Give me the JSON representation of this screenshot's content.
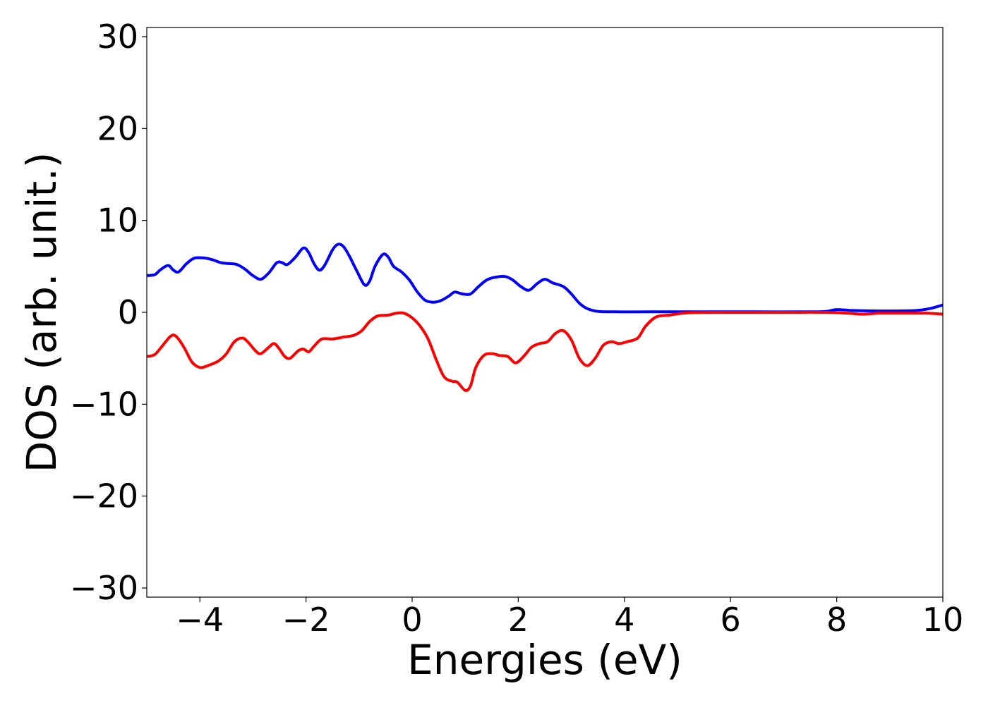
{
  "chart_data": {
    "type": "line",
    "title": "",
    "xlabel": "Energies (eV)",
    "ylabel": "DOS (arb. unit.)",
    "xlim": [
      -5,
      10
    ],
    "ylim": [
      -31,
      31
    ],
    "x_ticks": [
      -4,
      -2,
      0,
      2,
      4,
      6,
      8,
      10
    ],
    "y_ticks": [
      -30,
      -20,
      -10,
      0,
      10,
      20,
      30
    ],
    "x_tick_labels": [
      "−4",
      "−2",
      "0",
      "2",
      "4",
      "6",
      "8",
      "10"
    ],
    "y_tick_labels": [
      "−30",
      "−20",
      "−10",
      "0",
      "10",
      "20",
      "30"
    ],
    "grid": false,
    "legend": "none",
    "series": [
      {
        "color": "#0000ff",
        "points": [
          [
            -5.0,
            4.0
          ],
          [
            -4.85,
            4.1
          ],
          [
            -4.75,
            4.6
          ],
          [
            -4.6,
            5.1
          ],
          [
            -4.5,
            4.6
          ],
          [
            -4.4,
            4.4
          ],
          [
            -4.25,
            5.3
          ],
          [
            -4.1,
            5.9
          ],
          [
            -3.9,
            5.9
          ],
          [
            -3.75,
            5.7
          ],
          [
            -3.6,
            5.4
          ],
          [
            -3.45,
            5.3
          ],
          [
            -3.3,
            5.2
          ],
          [
            -3.15,
            4.7
          ],
          [
            -3.0,
            4.0
          ],
          [
            -2.85,
            3.6
          ],
          [
            -2.7,
            4.3
          ],
          [
            -2.55,
            5.4
          ],
          [
            -2.45,
            5.4
          ],
          [
            -2.35,
            5.2
          ],
          [
            -2.2,
            6.0
          ],
          [
            -2.05,
            7.0
          ],
          [
            -1.95,
            6.5
          ],
          [
            -1.85,
            5.3
          ],
          [
            -1.75,
            4.6
          ],
          [
            -1.65,
            5.1
          ],
          [
            -1.5,
            6.8
          ],
          [
            -1.4,
            7.4
          ],
          [
            -1.3,
            7.2
          ],
          [
            -1.2,
            6.3
          ],
          [
            -1.05,
            4.6
          ],
          [
            -0.9,
            3.0
          ],
          [
            -0.8,
            3.4
          ],
          [
            -0.7,
            5.0
          ],
          [
            -0.55,
            6.3
          ],
          [
            -0.45,
            6.0
          ],
          [
            -0.35,
            5.0
          ],
          [
            -0.2,
            4.4
          ],
          [
            -0.05,
            3.5
          ],
          [
            0.1,
            2.2
          ],
          [
            0.25,
            1.3
          ],
          [
            0.4,
            1.1
          ],
          [
            0.55,
            1.3
          ],
          [
            0.7,
            1.8
          ],
          [
            0.8,
            2.2
          ],
          [
            0.95,
            2.0
          ],
          [
            1.1,
            2.0
          ],
          [
            1.25,
            2.8
          ],
          [
            1.4,
            3.5
          ],
          [
            1.55,
            3.8
          ],
          [
            1.75,
            3.9
          ],
          [
            1.9,
            3.5
          ],
          [
            2.05,
            2.8
          ],
          [
            2.2,
            2.4
          ],
          [
            2.35,
            3.1
          ],
          [
            2.5,
            3.6
          ],
          [
            2.65,
            3.2
          ],
          [
            2.85,
            2.8
          ],
          [
            3.0,
            2.0
          ],
          [
            3.15,
            1.0
          ],
          [
            3.3,
            0.4
          ],
          [
            3.5,
            0.1
          ],
          [
            3.8,
            0.05
          ],
          [
            4.5,
            0.05
          ],
          [
            5.5,
            0.05
          ],
          [
            6.5,
            0.05
          ],
          [
            7.5,
            0.05
          ],
          [
            7.8,
            0.1
          ],
          [
            8.0,
            0.3
          ],
          [
            8.3,
            0.2
          ],
          [
            8.7,
            0.15
          ],
          [
            9.2,
            0.15
          ],
          [
            9.5,
            0.2
          ],
          [
            9.75,
            0.4
          ],
          [
            10.0,
            0.8
          ]
        ]
      },
      {
        "color": "#ff0000",
        "points": [
          [
            -5.0,
            -4.8
          ],
          [
            -4.85,
            -4.6
          ],
          [
            -4.7,
            -3.6
          ],
          [
            -4.55,
            -2.6
          ],
          [
            -4.45,
            -2.6
          ],
          [
            -4.3,
            -3.8
          ],
          [
            -4.15,
            -5.4
          ],
          [
            -4.0,
            -6.0
          ],
          [
            -3.85,
            -5.8
          ],
          [
            -3.65,
            -5.3
          ],
          [
            -3.5,
            -4.5
          ],
          [
            -3.35,
            -3.2
          ],
          [
            -3.2,
            -2.8
          ],
          [
            -3.1,
            -3.2
          ],
          [
            -2.95,
            -4.2
          ],
          [
            -2.85,
            -4.5
          ],
          [
            -2.7,
            -3.8
          ],
          [
            -2.6,
            -3.4
          ],
          [
            -2.5,
            -4.0
          ],
          [
            -2.4,
            -4.8
          ],
          [
            -2.3,
            -5.0
          ],
          [
            -2.15,
            -4.2
          ],
          [
            -2.05,
            -4.0
          ],
          [
            -1.95,
            -4.3
          ],
          [
            -1.85,
            -3.7
          ],
          [
            -1.7,
            -2.9
          ],
          [
            -1.5,
            -2.9
          ],
          [
            -1.3,
            -2.7
          ],
          [
            -1.1,
            -2.5
          ],
          [
            -0.95,
            -2.0
          ],
          [
            -0.8,
            -1.0
          ],
          [
            -0.65,
            -0.4
          ],
          [
            -0.45,
            -0.3
          ],
          [
            -0.3,
            -0.1
          ],
          [
            -0.15,
            -0.1
          ],
          [
            0.0,
            -0.6
          ],
          [
            0.15,
            -1.5
          ],
          [
            0.3,
            -2.9
          ],
          [
            0.45,
            -5.1
          ],
          [
            0.6,
            -7.0
          ],
          [
            0.75,
            -7.5
          ],
          [
            0.85,
            -7.6
          ],
          [
            1.0,
            -8.5
          ],
          [
            1.1,
            -8.0
          ],
          [
            1.2,
            -6.0
          ],
          [
            1.35,
            -4.7
          ],
          [
            1.5,
            -4.5
          ],
          [
            1.65,
            -4.7
          ],
          [
            1.8,
            -4.8
          ],
          [
            1.95,
            -5.5
          ],
          [
            2.1,
            -4.8
          ],
          [
            2.25,
            -3.8
          ],
          [
            2.4,
            -3.4
          ],
          [
            2.55,
            -3.2
          ],
          [
            2.7,
            -2.3
          ],
          [
            2.85,
            -2.0
          ],
          [
            3.0,
            -3.0
          ],
          [
            3.15,
            -5.0
          ],
          [
            3.3,
            -5.8
          ],
          [
            3.45,
            -5.0
          ],
          [
            3.6,
            -3.6
          ],
          [
            3.75,
            -3.2
          ],
          [
            3.9,
            -3.4
          ],
          [
            4.05,
            -3.2
          ],
          [
            4.25,
            -2.8
          ],
          [
            4.4,
            -1.5
          ],
          [
            4.6,
            -0.5
          ],
          [
            4.85,
            -0.3
          ],
          [
            5.2,
            -0.05
          ],
          [
            6.0,
            0.0
          ],
          [
            7.0,
            0.0
          ],
          [
            7.8,
            0.0
          ],
          [
            8.2,
            -0.1
          ],
          [
            8.5,
            -0.2
          ],
          [
            8.8,
            -0.1
          ],
          [
            9.3,
            -0.1
          ],
          [
            9.7,
            -0.1
          ],
          [
            10.0,
            -0.2
          ]
        ]
      }
    ]
  }
}
